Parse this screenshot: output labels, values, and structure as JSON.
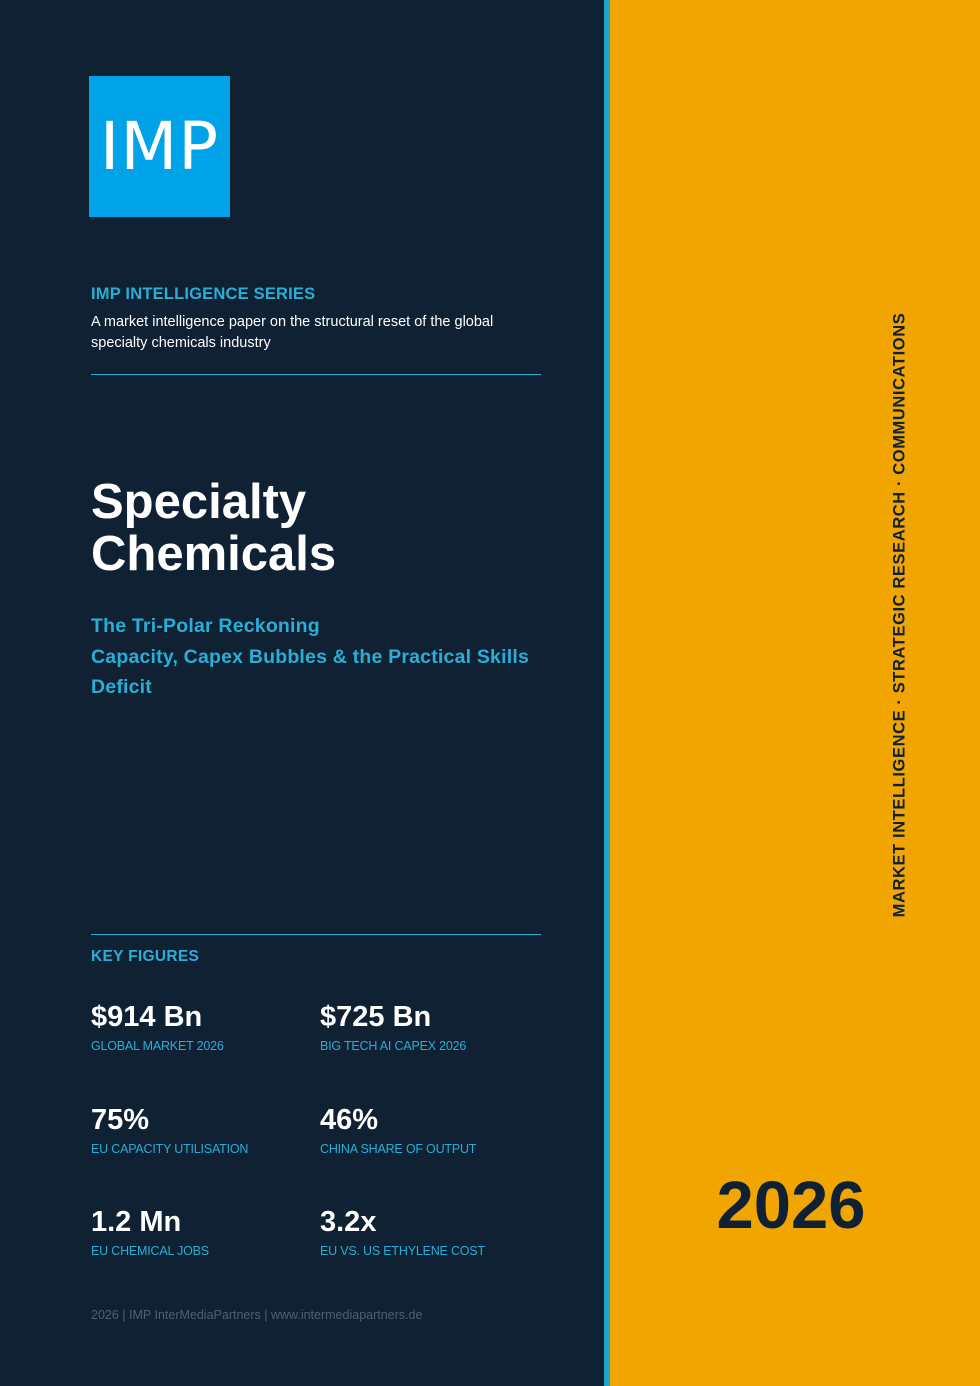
{
  "logo": {
    "text": "IMP"
  },
  "series": {
    "title": "IMP INTELLIGENCE SERIES",
    "description": "A market intelligence paper on the structural reset of the global specialty chemicals industry"
  },
  "title": {
    "line1": "Specialty",
    "line2": "Chemicals"
  },
  "subtitle": {
    "line1": "The Tri-Polar Reckoning",
    "line2": "Capacity, Capex Bubbles & the Practical Skills Deficit"
  },
  "key_figures": {
    "heading": "KEY FIGURES",
    "items": [
      {
        "value": "$914 Bn",
        "label": "GLOBAL MARKET 2026"
      },
      {
        "value": "$725 Bn",
        "label": "BIG TECH AI CAPEX 2026"
      },
      {
        "value": "75%",
        "label": "EU CAPACITY UTILISATION"
      },
      {
        "value": "46%",
        "label": "CHINA SHARE OF OUTPUT"
      },
      {
        "value": "1.2 Mn",
        "label": "EU CHEMICAL JOBS"
      },
      {
        "value": "3.2x",
        "label": "EU VS. US ETHYLENE COST"
      }
    ]
  },
  "footer": {
    "text": "2026  |  IMP InterMediaPartners  |  www.intermediapartners.de"
  },
  "sidebar": {
    "tagline": "MARKET INTELLIGENCE  ·  STRATEGIC RESEARCH  ·  COMMUNICATIONS",
    "year": "2026"
  },
  "colors": {
    "navy": "#0f2133",
    "cyan": "#2aaed6",
    "logo_blue": "#00a3e8",
    "amber": "#f0a500"
  }
}
